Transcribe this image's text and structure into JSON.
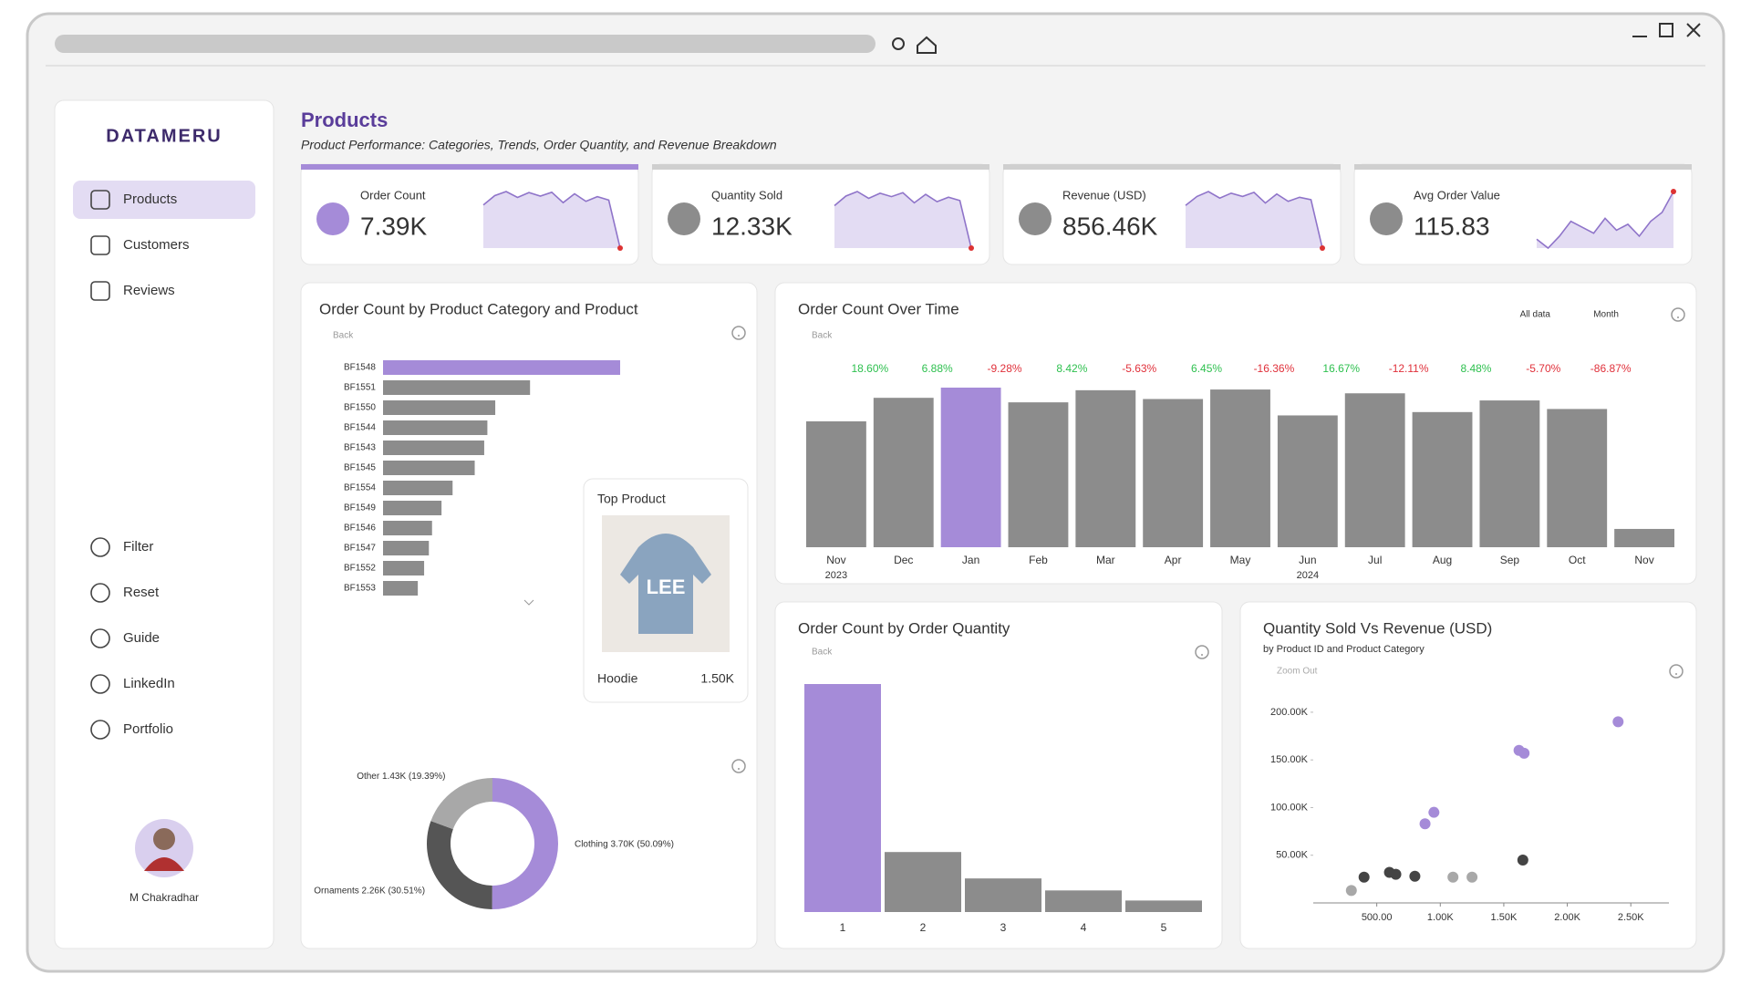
{
  "sidebar": {
    "brand": "DATAMERU",
    "nav": [
      "Products",
      "Customers",
      "Reviews"
    ],
    "tools": [
      "Filter",
      "Reset",
      "Guide",
      "LinkedIn",
      "Portfolio"
    ],
    "user": "M Chakradhar"
  },
  "header": {
    "title": "Products",
    "subtitle": "Product Performance: Categories, Trends, Order Quantity, and Revenue Breakdown"
  },
  "kpis": [
    {
      "label": "Order Count",
      "value": "7.39K",
      "spark": [
        530,
        629,
        672,
        610,
        661,
        624,
        664,
        555,
        648,
        569,
        618,
        582,
        77
      ]
    },
    {
      "label": "Quantity Sold",
      "value": "12.33K",
      "spark": [
        880,
        1050,
        1130,
        1010,
        1100,
        1040,
        1110,
        930,
        1080,
        950,
        1030,
        970,
        130
      ]
    },
    {
      "label": "Revenue (USD)",
      "value": "856.46K",
      "spark": [
        61000,
        72000,
        78000,
        70000,
        76000,
        72000,
        77000,
        64000,
        75000,
        66000,
        71000,
        68000,
        9000
      ]
    },
    {
      "label": "Avg Order Value",
      "value": "115.83",
      "spark": [
        112,
        109,
        113,
        118,
        116,
        114,
        119,
        115,
        117,
        113,
        118,
        121,
        128
      ]
    }
  ],
  "product_bar": {
    "type": "bar",
    "title": "Order Count by Product Category and Product",
    "back": "Back",
    "categories": [
      "BF1548",
      "BF1551",
      "BF1550",
      "BF1544",
      "BF1543",
      "BF1545",
      "BF1554",
      "BF1549",
      "BF1546",
      "BF1547",
      "BF1552",
      "BF1553"
    ],
    "values": [
      1500,
      930,
      710,
      660,
      640,
      580,
      440,
      370,
      310,
      290,
      260,
      220
    ],
    "colors": [
      "#a58bd8",
      "#8c8c8c",
      "#8c8c8c",
      "#8c8c8c",
      "#8c8c8c",
      "#8c8c8c",
      "#8c8c8c",
      "#8c8c8c",
      "#8c8c8c",
      "#8c8c8c",
      "#8c8c8c",
      "#8c8c8c"
    ]
  },
  "top_product": {
    "title": "Top Product",
    "image_text": "LEE",
    "name": "Hoodie",
    "value": "1.50K"
  },
  "category_donut": {
    "type": "pie",
    "categories": [
      "Clothing",
      "Ornaments",
      "Other"
    ],
    "values": [
      50.09,
      30.51,
      19.39
    ],
    "value_labels": [
      "3.70K (50.09%)",
      "2.26K (30.51%)",
      "1.43K (19.39%)"
    ],
    "colors": [
      "#a58bd8",
      "#555555",
      "#a8a8a8"
    ]
  },
  "monthly": {
    "type": "bar",
    "title": "Order Count Over Time",
    "back": "Back",
    "controls": [
      "All data",
      "Month"
    ],
    "categories": [
      "Nov",
      "Dec",
      "Jan",
      "Feb",
      "Mar",
      "Apr",
      "May",
      "Jun",
      "Jul",
      "Aug",
      "Sep",
      "Oct",
      "Nov"
    ],
    "years": [
      "2023",
      null,
      null,
      null,
      null,
      null,
      null,
      "2024",
      null,
      null,
      null,
      null,
      null
    ],
    "values": [
      530,
      629,
      672,
      610,
      661,
      624,
      664,
      555,
      648,
      569,
      618,
      582,
      77
    ],
    "changes": [
      null,
      18.6,
      6.88,
      -9.28,
      8.42,
      -5.63,
      6.45,
      -16.36,
      16.67,
      -12.11,
      8.48,
      -5.7,
      -86.87
    ],
    "change_labels": [
      null,
      "18.60%",
      "6.88%",
      "-9.28%",
      "8.42%",
      "-5.63%",
      "6.45%",
      "-16.36%",
      "16.67%",
      "-12.11%",
      "8.48%",
      "-5.70%",
      "-86.87%"
    ],
    "colors": [
      "#8c8c8c",
      "#8c8c8c",
      "#a58bd8",
      "#8c8c8c",
      "#8c8c8c",
      "#8c8c8c",
      "#8c8c8c",
      "#8c8c8c",
      "#8c8c8c",
      "#8c8c8c",
      "#8c8c8c",
      "#8c8c8c",
      "#8c8c8c"
    ]
  },
  "quantity_bar": {
    "type": "bar",
    "title": "Order Count by Order Quantity",
    "back": "Back",
    "categories": [
      "1",
      "2",
      "3",
      "4",
      "5"
    ],
    "values": [
      4750,
      1250,
      700,
      450,
      240
    ],
    "colors": [
      "#a58bd8",
      "#8c8c8c",
      "#8c8c8c",
      "#8c8c8c",
      "#8c8c8c"
    ]
  },
  "scatter": {
    "type": "scatter",
    "title": "Quantity Sold Vs Revenue (USD)",
    "subtitle": "by Product ID and Product Category",
    "zoom": "Zoom Out",
    "xlim": [
      0,
      2800
    ],
    "ylim": [
      0,
      220000
    ],
    "xticks": [
      {
        "value": 500,
        "label": "500.00"
      },
      {
        "value": 1000,
        "label": "1.00K"
      },
      {
        "value": 1500,
        "label": "1.50K"
      },
      {
        "value": 2000,
        "label": "2.00K"
      },
      {
        "value": 2500,
        "label": "2.50K"
      }
    ],
    "yticks": [
      {
        "value": 50000,
        "label": "50.00K"
      },
      {
        "value": 100000,
        "label": "100.00K"
      },
      {
        "value": 150000,
        "label": "150.00K"
      },
      {
        "value": 200000,
        "label": "200.00K"
      }
    ],
    "series": [
      {
        "color": "#a58bd8",
        "x": [
          2400,
          1620,
          1660,
          950,
          880
        ],
        "y": [
          190000,
          160000,
          157000,
          95000,
          83000
        ]
      },
      {
        "color": "#444444",
        "x": [
          400,
          600,
          650,
          800,
          1650
        ],
        "y": [
          27000,
          32000,
          30000,
          28000,
          45000
        ]
      },
      {
        "color": "#a8a8a8",
        "x": [
          300,
          1100,
          1250
        ],
        "y": [
          13000,
          27000,
          27000
        ]
      }
    ]
  }
}
